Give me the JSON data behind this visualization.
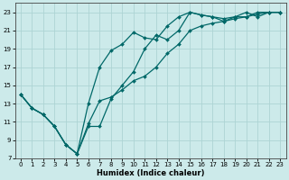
{
  "xlabel": "Humidex (Indice chaleur)",
  "bg_color": "#cceaea",
  "grid_color": "#add4d4",
  "line_color": "#006868",
  "xlim": [
    -0.5,
    23.5
  ],
  "ylim": [
    7,
    24
  ],
  "xticks": [
    0,
    1,
    2,
    3,
    4,
    5,
    6,
    7,
    8,
    9,
    10,
    11,
    12,
    13,
    14,
    15,
    16,
    17,
    18,
    19,
    20,
    21,
    22,
    23
  ],
  "yticks": [
    7,
    9,
    11,
    13,
    15,
    17,
    19,
    21,
    23
  ],
  "line1_x": [
    0,
    1,
    2,
    3,
    4,
    5,
    6,
    7,
    8,
    9,
    10,
    11,
    12,
    13,
    14,
    15,
    16,
    17,
    18,
    19,
    20,
    21,
    22,
    23
  ],
  "line1_y": [
    14.0,
    12.5,
    11.8,
    10.5,
    8.5,
    7.5,
    10.8,
    13.3,
    13.7,
    14.5,
    15.5,
    16.0,
    17.0,
    18.5,
    19.5,
    21.0,
    21.5,
    21.8,
    22.0,
    22.3,
    22.5,
    22.8,
    23.0,
    23.0
  ],
  "line2_x": [
    0,
    1,
    2,
    3,
    4,
    5,
    6,
    7,
    8,
    9,
    10,
    11,
    12,
    13,
    14,
    15,
    16,
    17,
    18,
    19,
    20,
    21,
    22,
    23
  ],
  "line2_y": [
    14.0,
    12.5,
    11.8,
    10.5,
    8.5,
    7.5,
    13.0,
    17.0,
    18.8,
    19.5,
    20.8,
    20.2,
    20.0,
    21.5,
    22.5,
    23.0,
    22.7,
    22.5,
    22.0,
    22.5,
    22.5,
    23.0,
    23.0,
    23.0
  ],
  "line3_x": [
    0,
    1,
    2,
    3,
    4,
    5,
    6,
    7,
    8,
    9,
    10,
    11,
    12,
    13,
    14,
    15,
    16,
    17,
    18,
    19,
    20,
    21,
    22,
    23
  ],
  "line3_y": [
    14.0,
    12.5,
    11.8,
    10.5,
    8.5,
    7.5,
    10.5,
    10.5,
    13.5,
    15.0,
    16.5,
    19.0,
    20.5,
    20.0,
    21.0,
    23.0,
    22.7,
    22.5,
    22.3,
    22.5,
    23.0,
    22.5,
    23.0,
    23.0
  ],
  "marker_size": 2.0,
  "linewidth": 0.9,
  "tick_fontsize": 5.0,
  "xlabel_fontsize": 6.0
}
